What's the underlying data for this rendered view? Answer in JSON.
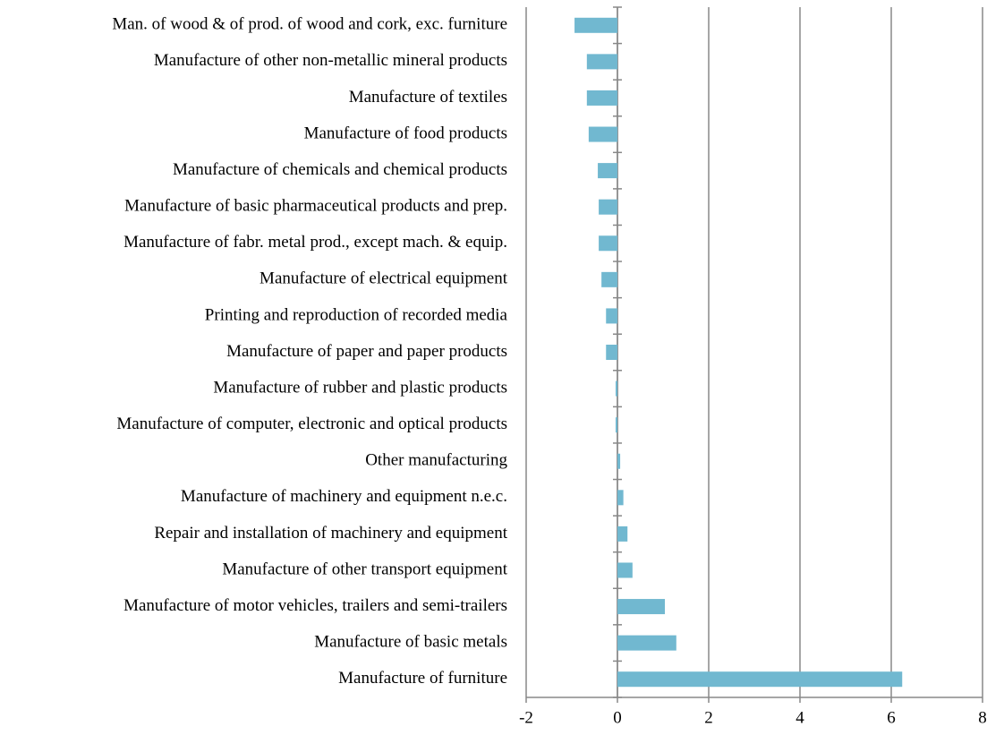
{
  "chart_data": {
    "type": "barh",
    "categories": [
      "Man. of wood & of prod. of wood and cork, exc. furniture",
      "Manufacture of other non-metallic mineral products",
      "Manufacture of textiles",
      "Manufacture of food products",
      "Manufacture of chemicals and chemical products",
      "Manufacture of basic pharmaceutical products and prep.",
      "Manufacture of fabr. metal prod., except mach. & equip.",
      "Manufacture of electrical equipment",
      "Printing and reproduction of recorded media",
      "Manufacture of paper and paper products",
      "Manufacture of rubber and plastic products",
      "Manufacture of computer, electronic and optical products",
      "Other manufacturing",
      "Manufacture of machinery and equipment n.e.c.",
      "Repair and installation of machinery and equipment",
      "Manufacture of other transport equipment",
      "Manufacture of motor vehicles, trailers and semi-trailers",
      "Manufacture of basic metals",
      "Manufacture of furniture"
    ],
    "values": [
      -0.94,
      -0.67,
      -0.67,
      -0.63,
      -0.43,
      -0.41,
      -0.41,
      -0.35,
      -0.25,
      -0.25,
      -0.04,
      -0.04,
      0.06,
      0.13,
      0.22,
      0.33,
      1.04,
      1.29,
      6.24
    ],
    "color": "#71b8d0",
    "xlim": [
      -2,
      8
    ],
    "xticks": [
      -2,
      0,
      2,
      4,
      6,
      8
    ],
    "grid": true
  }
}
